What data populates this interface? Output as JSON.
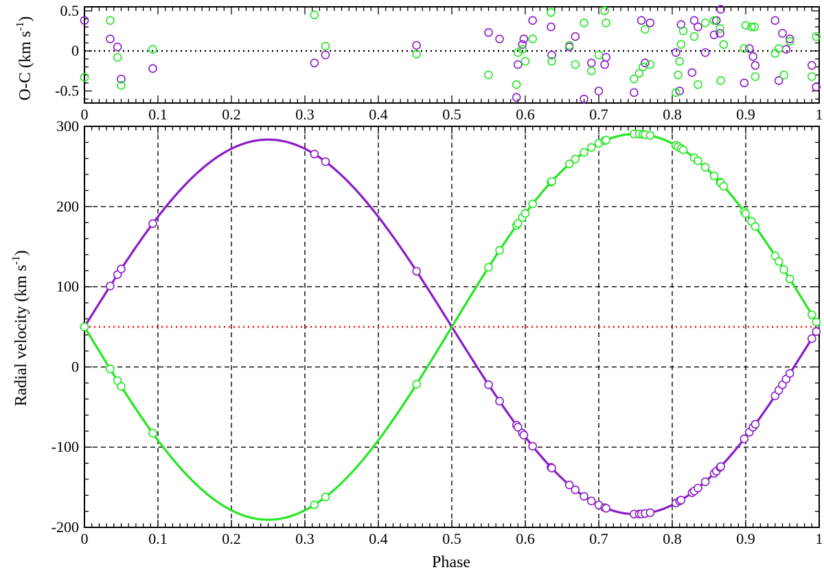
{
  "colors": {
    "primary": "#8a1ac8",
    "secondary": "#22e622",
    "systemic": "#ff0000",
    "grid": "#000000"
  },
  "chart_data": [
    {
      "type": "scatter",
      "panel": "residuals",
      "title": "",
      "xlabel": "",
      "ylabel": "O-C (km s-1)",
      "xlim": [
        0,
        1
      ],
      "ylim": [
        -0.65,
        0.55
      ],
      "x_ticks": [
        0,
        0.1,
        0.2,
        0.3,
        0.4,
        0.5,
        0.6,
        0.7,
        0.8,
        0.9,
        1
      ],
      "x_tick_labels": [
        "0",
        "0.1",
        "0.2",
        "0.3",
        "0.4",
        "0.5",
        "0.6",
        "0.7",
        "0.8",
        "0.9",
        "1"
      ],
      "y_ticks": [
        0.5,
        0,
        -0.5
      ],
      "y_tick_labels": [
        "0.5",
        "0",
        "-0.5"
      ],
      "reference_line": 0,
      "grid": false,
      "series": [
        {
          "color_key": "primary",
          "points": [
            [
              0.0,
              0.38
            ],
            [
              0.035,
              0.15
            ],
            [
              0.045,
              0.05
            ],
            [
              0.05,
              -0.35
            ],
            [
              0.093,
              -0.22
            ],
            [
              0.313,
              -0.15
            ],
            [
              0.328,
              -0.05
            ],
            [
              0.452,
              0.07
            ],
            [
              0.55,
              0.23
            ],
            [
              0.565,
              0.15
            ],
            [
              0.588,
              -0.58
            ],
            [
              0.59,
              -0.17
            ],
            [
              0.596,
              0.08
            ],
            [
              0.598,
              0.15
            ],
            [
              0.61,
              0.38
            ],
            [
              0.635,
              0.3
            ],
            [
              0.636,
              -0.05
            ],
            [
              0.66,
              0.05
            ],
            [
              0.668,
              0.18
            ],
            [
              0.68,
              -0.6
            ],
            [
              0.69,
              -0.15
            ],
            [
              0.7,
              -0.5
            ],
            [
              0.708,
              -0.17
            ],
            [
              0.71,
              -0.08
            ],
            [
              0.748,
              -0.52
            ],
            [
              0.758,
              0.38
            ],
            [
              0.763,
              -0.15
            ],
            [
              0.77,
              0.35
            ],
            [
              0.805,
              -0.02
            ],
            [
              0.81,
              -0.5
            ],
            [
              0.812,
              0.33
            ],
            [
              0.827,
              -0.27
            ],
            [
              0.83,
              0.38
            ],
            [
              0.835,
              0.3
            ],
            [
              0.845,
              -0.02
            ],
            [
              0.857,
              0.2
            ],
            [
              0.86,
              0.38
            ],
            [
              0.865,
              0.22
            ],
            [
              0.866,
              0.52
            ],
            [
              0.898,
              -0.4
            ],
            [
              0.905,
              0.03
            ],
            [
              0.91,
              -0.07
            ],
            [
              0.913,
              -0.18
            ],
            [
              0.94,
              0.38
            ],
            [
              0.945,
              -0.37
            ],
            [
              0.95,
              0.22
            ],
            [
              0.955,
              0.02
            ],
            [
              0.96,
              0.15
            ],
            [
              0.99,
              -0.18
            ],
            [
              0.996,
              -0.45
            ]
          ]
        },
        {
          "color_key": "secondary",
          "points": [
            [
              0.0,
              -0.33
            ],
            [
              0.035,
              0.38
            ],
            [
              0.045,
              -0.08
            ],
            [
              0.05,
              -0.43
            ],
            [
              0.093,
              0.02
            ],
            [
              0.313,
              0.45
            ],
            [
              0.328,
              0.06
            ],
            [
              0.452,
              -0.04
            ],
            [
              0.55,
              -0.3
            ],
            [
              0.588,
              -0.42
            ],
            [
              0.59,
              -0.02
            ],
            [
              0.596,
              0.02
            ],
            [
              0.6,
              -0.13
            ],
            [
              0.61,
              0.15
            ],
            [
              0.635,
              0.48
            ],
            [
              0.636,
              -0.13
            ],
            [
              0.66,
              0.07
            ],
            [
              0.668,
              -0.17
            ],
            [
              0.68,
              0.35
            ],
            [
              0.69,
              -0.25
            ],
            [
              0.7,
              -0.05
            ],
            [
              0.708,
              0.5
            ],
            [
              0.71,
              0.35
            ],
            [
              0.748,
              -0.35
            ],
            [
              0.755,
              -0.28
            ],
            [
              0.76,
              -0.2
            ],
            [
              0.763,
              0.27
            ],
            [
              0.77,
              -0.17
            ],
            [
              0.805,
              -0.52
            ],
            [
              0.808,
              -0.3
            ],
            [
              0.81,
              -0.13
            ],
            [
              0.812,
              0.08
            ],
            [
              0.815,
              0.25
            ],
            [
              0.83,
              0.18
            ],
            [
              0.835,
              -0.42
            ],
            [
              0.845,
              0.35
            ],
            [
              0.857,
              0.38
            ],
            [
              0.865,
              0.28
            ],
            [
              0.866,
              -0.37
            ],
            [
              0.87,
              0.08
            ],
            [
              0.898,
              0.03
            ],
            [
              0.9,
              0.32
            ],
            [
              0.908,
              0.3
            ],
            [
              0.912,
              0.3
            ],
            [
              0.913,
              -0.32
            ],
            [
              0.94,
              -0.03
            ],
            [
              0.945,
              0.03
            ],
            [
              0.952,
              -0.3
            ],
            [
              0.96,
              0.12
            ],
            [
              0.99,
              -0.32
            ],
            [
              0.996,
              0.18
            ]
          ]
        }
      ]
    },
    {
      "type": "line",
      "panel": "radial-velocity",
      "title": "",
      "xlabel": "Phase",
      "ylabel": "Radial velocity (km s-1)",
      "xlim": [
        0,
        1
      ],
      "ylim": [
        -200,
        300
      ],
      "x_ticks": [
        0,
        0.1,
        0.2,
        0.3,
        0.4,
        0.5,
        0.6,
        0.7,
        0.8,
        0.9,
        1
      ],
      "x_tick_labels": [
        "0",
        "0.1",
        "0.2",
        "0.3",
        "0.4",
        "0.5",
        "0.6",
        "0.7",
        "0.8",
        "0.9",
        "1"
      ],
      "y_ticks": [
        300,
        200,
        100,
        0,
        -100,
        -200
      ],
      "y_tick_labels": [
        "300",
        "200",
        "100",
        "0",
        "-100",
        "-200"
      ],
      "grid": true,
      "systemic_velocity": 50,
      "series": [
        {
          "color_key": "primary",
          "model": {
            "gamma": 50,
            "K": 233.5,
            "sign": 1
          },
          "observed_phases": [
            0.0,
            0.035,
            0.045,
            0.05,
            0.093,
            0.313,
            0.328,
            0.452,
            0.55,
            0.565,
            0.588,
            0.59,
            0.596,
            0.598,
            0.61,
            0.635,
            0.636,
            0.66,
            0.668,
            0.68,
            0.69,
            0.7,
            0.708,
            0.71,
            0.748,
            0.755,
            0.758,
            0.763,
            0.77,
            0.805,
            0.81,
            0.812,
            0.827,
            0.83,
            0.835,
            0.845,
            0.857,
            0.86,
            0.865,
            0.866,
            0.898,
            0.905,
            0.91,
            0.913,
            0.94,
            0.945,
            0.95,
            0.955,
            0.96,
            0.99,
            0.996
          ]
        },
        {
          "color_key": "secondary",
          "model": {
            "gamma": 50,
            "K": 240.5,
            "sign": -1
          },
          "observed_phases": [
            0.0,
            0.035,
            0.045,
            0.05,
            0.093,
            0.313,
            0.328,
            0.452,
            0.55,
            0.565,
            0.588,
            0.59,
            0.596,
            0.6,
            0.61,
            0.635,
            0.636,
            0.66,
            0.668,
            0.68,
            0.69,
            0.7,
            0.708,
            0.71,
            0.748,
            0.755,
            0.76,
            0.763,
            0.77,
            0.805,
            0.808,
            0.812,
            0.815,
            0.83,
            0.835,
            0.845,
            0.857,
            0.865,
            0.866,
            0.87,
            0.898,
            0.9,
            0.908,
            0.913,
            0.94,
            0.945,
            0.952,
            0.96,
            0.99,
            0.996
          ]
        }
      ]
    }
  ]
}
